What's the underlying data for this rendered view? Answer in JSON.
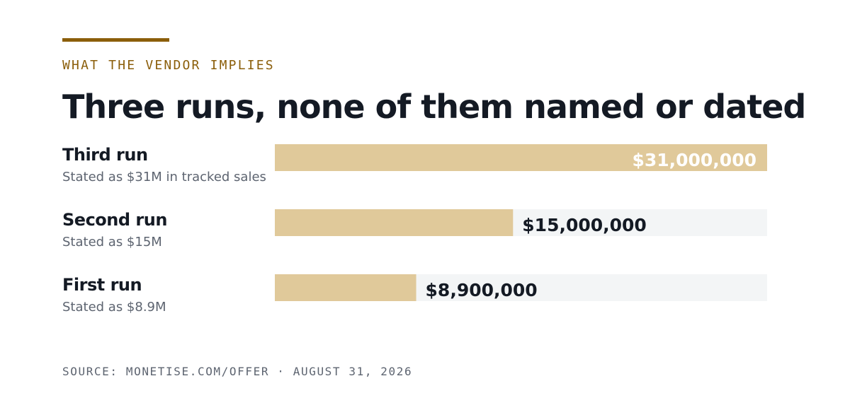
{
  "chart_data": {
    "type": "bar",
    "eyebrow": "WHAT THE VENDOR IMPLIES",
    "title": "Three runs, none of them named or dated",
    "categories": [
      "Third run",
      "Second run",
      "First run"
    ],
    "category_notes": [
      "Stated as $31M in tracked sales",
      "Stated as $15M",
      "Stated as $8.9M"
    ],
    "values": [
      31000000,
      15000000,
      8900000
    ],
    "value_labels": [
      "$31,000,000",
      "$15,000,000",
      "$8,900,000"
    ],
    "xlim": [
      0,
      31000000
    ],
    "color": "#e0c99a",
    "track_color": "#f3f5f6",
    "source": "SOURCE: MONETISE.COM/OFFER · AUGUST 31, 2026"
  }
}
